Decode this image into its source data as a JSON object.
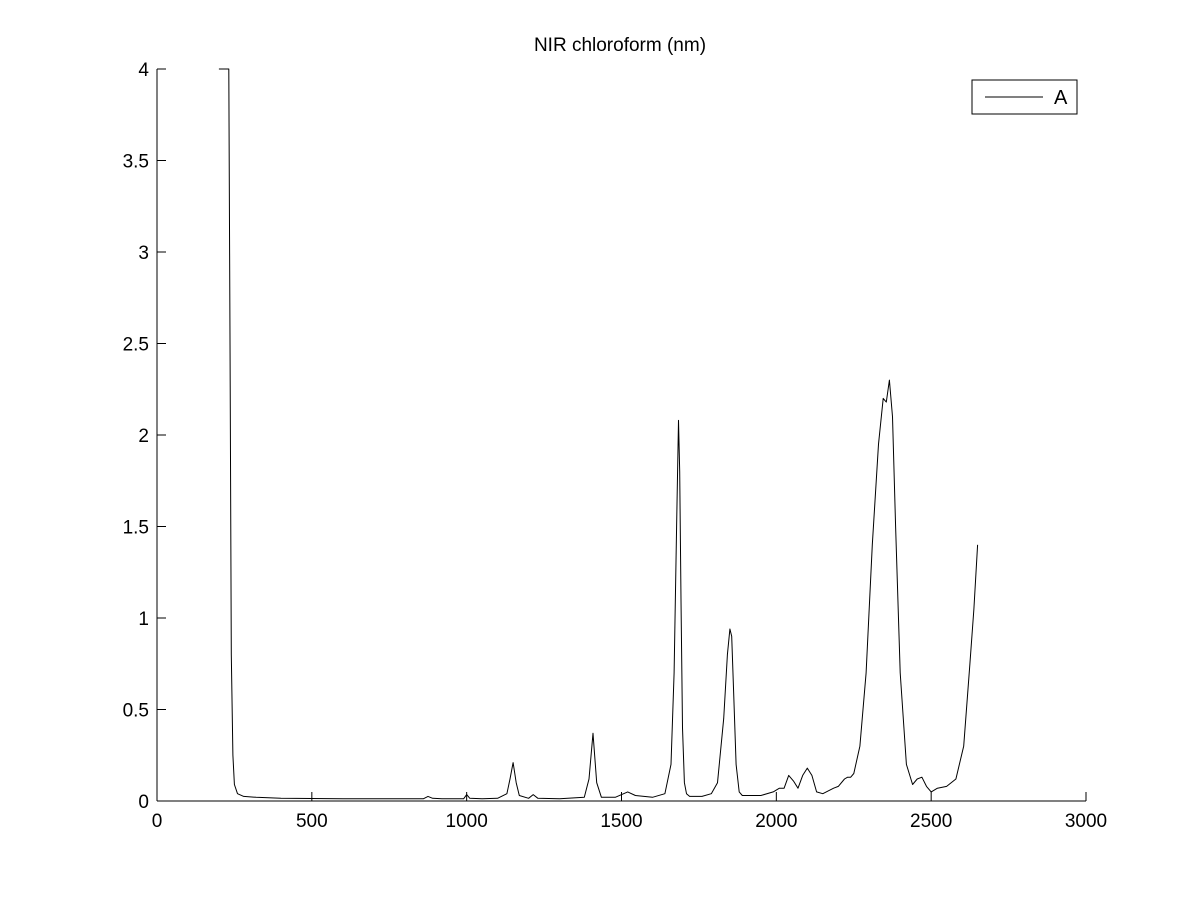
{
  "chart_data": {
    "type": "line",
    "title": "NIR chloroform (nm)",
    "xlabel": "",
    "ylabel": "",
    "xlim": [
      0,
      3000
    ],
    "ylim": [
      0,
      4
    ],
    "xticks": [
      0,
      500,
      1000,
      1500,
      2000,
      2500,
      3000
    ],
    "yticks": [
      0,
      0.5,
      1,
      1.5,
      2,
      2.5,
      3,
      3.5,
      4
    ],
    "xtick_labels": [
      "0",
      "500",
      "1000",
      "1500",
      "2000",
      "2500",
      "3000"
    ],
    "ytick_labels": [
      "0",
      "0.5",
      "1",
      "1.5",
      "2",
      "2.5",
      "3",
      "3.5",
      "4"
    ],
    "grid": false,
    "legend_position": "top-right",
    "colors": {
      "line": "#000000",
      "axes": "#000000",
      "background": "#ffffff"
    },
    "series": [
      {
        "name": "A",
        "x": [
          200,
          232,
          236,
          240,
          245,
          250,
          260,
          280,
          320,
          400,
          600,
          800,
          860,
          875,
          890,
          920,
          990,
          1000,
          1010,
          1050,
          1100,
          1130,
          1140,
          1150,
          1160,
          1170,
          1200,
          1215,
          1230,
          1300,
          1380,
          1395,
          1408,
          1420,
          1435,
          1480,
          1520,
          1545,
          1600,
          1640,
          1660,
          1670,
          1678,
          1684,
          1688,
          1692,
          1697,
          1703,
          1710,
          1720,
          1760,
          1790,
          1810,
          1830,
          1842,
          1850,
          1856,
          1862,
          1870,
          1880,
          1890,
          1950,
          1990,
          2010,
          2025,
          2040,
          2055,
          2070,
          2085,
          2100,
          2115,
          2130,
          2150,
          2185,
          2200,
          2220,
          2230,
          2240,
          2250,
          2270,
          2290,
          2310,
          2330,
          2345,
          2355,
          2365,
          2375,
          2385,
          2400,
          2420,
          2440,
          2455,
          2470,
          2485,
          2500,
          2520,
          2550,
          2580,
          2605,
          2625,
          2638,
          2650
        ],
        "y": [
          4.0,
          4.0,
          2.4,
          0.8,
          0.25,
          0.09,
          0.04,
          0.025,
          0.02,
          0.015,
          0.012,
          0.012,
          0.012,
          0.025,
          0.015,
          0.012,
          0.012,
          0.035,
          0.015,
          0.012,
          0.015,
          0.04,
          0.12,
          0.21,
          0.1,
          0.03,
          0.015,
          0.035,
          0.015,
          0.012,
          0.02,
          0.12,
          0.37,
          0.1,
          0.02,
          0.02,
          0.05,
          0.03,
          0.02,
          0.04,
          0.2,
          0.7,
          1.5,
          2.08,
          1.8,
          1.1,
          0.4,
          0.1,
          0.04,
          0.025,
          0.025,
          0.04,
          0.1,
          0.45,
          0.8,
          0.94,
          0.9,
          0.6,
          0.2,
          0.05,
          0.03,
          0.03,
          0.05,
          0.07,
          0.07,
          0.14,
          0.11,
          0.07,
          0.14,
          0.18,
          0.14,
          0.05,
          0.04,
          0.07,
          0.08,
          0.12,
          0.13,
          0.13,
          0.15,
          0.3,
          0.7,
          1.4,
          1.95,
          2.2,
          2.18,
          2.3,
          2.1,
          1.5,
          0.7,
          0.2,
          0.09,
          0.12,
          0.13,
          0.08,
          0.05,
          0.07,
          0.08,
          0.12,
          0.3,
          0.75,
          1.05,
          1.4
        ]
      }
    ]
  }
}
